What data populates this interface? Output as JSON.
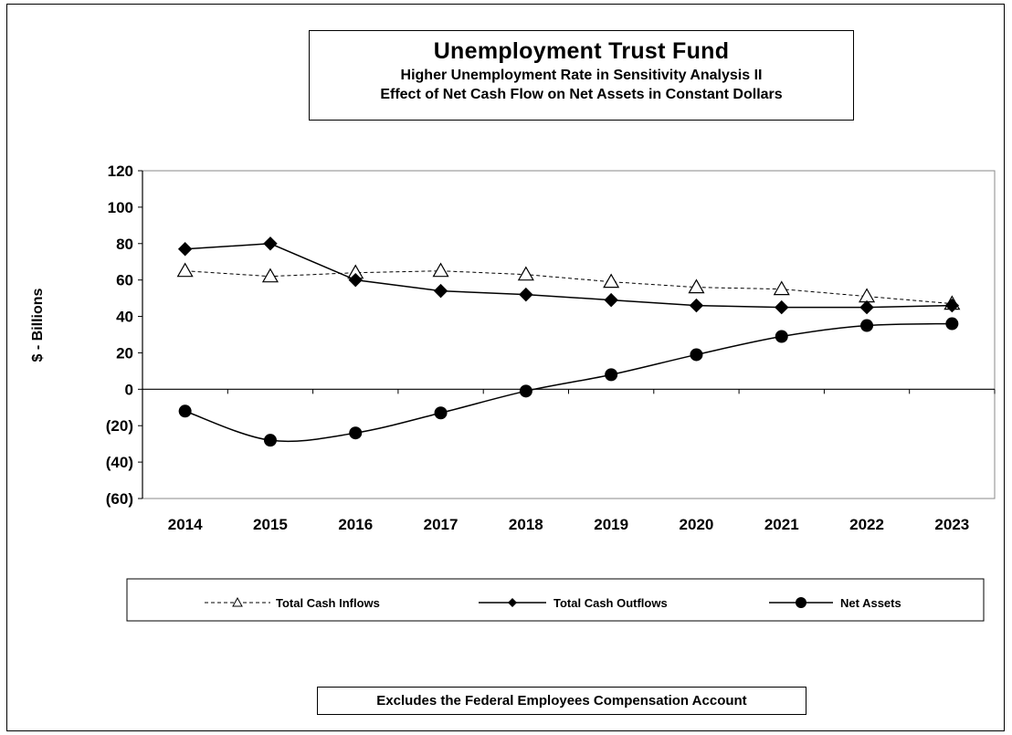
{
  "chart_data": {
    "type": "line",
    "title": "Unemployment Trust Fund",
    "subtitle_lines": [
      "Higher Unemployment Rate in Sensitivity Analysis II",
      "Effect of Net Cash Flow on Net Assets in Constant Dollars"
    ],
    "ylabel": "$ - Billions",
    "xlabel": "",
    "x": [
      "2014",
      "2015",
      "2016",
      "2017",
      "2018",
      "2019",
      "2020",
      "2021",
      "2022",
      "2023"
    ],
    "ylim": [
      -60,
      120
    ],
    "yticks": [
      -60,
      -40,
      -20,
      0,
      20,
      40,
      60,
      80,
      100,
      120
    ],
    "ytick_labels": [
      "(60)",
      "(40)",
      "(20)",
      "0",
      "20",
      "40",
      "60",
      "80",
      "100",
      "120"
    ],
    "grid": false,
    "legend_position": "bottom",
    "series": [
      {
        "name": "Total Cash Inflows",
        "values": [
          65,
          62,
          64,
          65,
          63,
          59,
          56,
          55,
          51,
          47
        ],
        "line_style": "dashed",
        "marker": "open-triangle",
        "color": "#000000"
      },
      {
        "name": "Total Cash Outflows",
        "values": [
          77,
          80,
          60,
          54,
          52,
          49,
          46,
          45,
          45,
          46
        ],
        "line_style": "solid",
        "marker": "filled-diamond",
        "color": "#000000"
      },
      {
        "name": "Net Assets",
        "values": [
          -12,
          -28,
          -24,
          -13,
          -1,
          8,
          19,
          29,
          35,
          36
        ],
        "line_style": "solid-smooth",
        "marker": "filled-circle",
        "color": "#000000"
      }
    ],
    "footnote": "Excludes the Federal Employees Compensation Account"
  }
}
